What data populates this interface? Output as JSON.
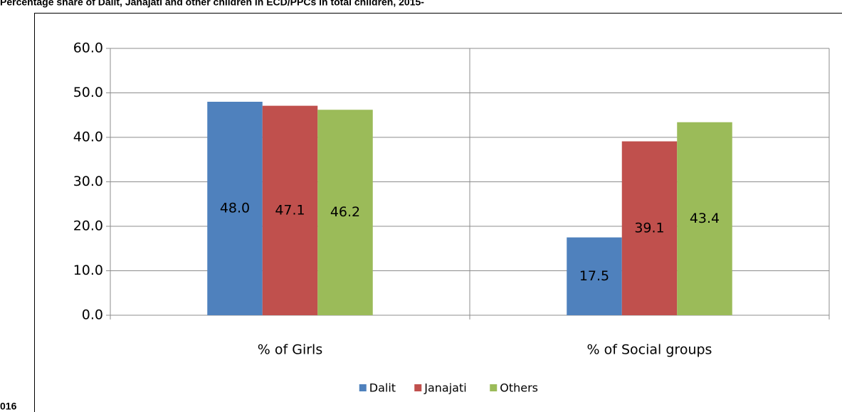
{
  "chart_data": {
    "type": "bar",
    "title": "Percentage share of Dalit, Janajati and other children in ECD/PPCs in total children, 2015-",
    "title_continuation": "016",
    "categories": [
      "% of Girls",
      "% of Social groups"
    ],
    "series": [
      {
        "name": "Dalit",
        "color": "#4f81bd",
        "values": [
          48.0,
          17.5
        ],
        "value_labels": [
          "48.0",
          "17.5"
        ]
      },
      {
        "name": "Janajati",
        "color": "#c0504d",
        "values": [
          47.1,
          39.1
        ],
        "value_labels": [
          "47.1",
          "39.1"
        ]
      },
      {
        "name": "Others",
        "color": "#9bbb59",
        "values": [
          46.2,
          43.4
        ],
        "value_labels": [
          "46.2",
          "43.4"
        ]
      }
    ],
    "ylim": [
      0,
      60
    ],
    "yticks": [
      {
        "value": 0,
        "label": "0.0"
      },
      {
        "value": 10,
        "label": "10.0"
      },
      {
        "value": 20,
        "label": "20.0"
      },
      {
        "value": 30,
        "label": "30.0"
      },
      {
        "value": 40,
        "label": "40.0"
      },
      {
        "value": 50,
        "label": "50.0"
      },
      {
        "value": 60,
        "label": "60.0"
      }
    ],
    "grid": true,
    "legend": "bottom"
  }
}
